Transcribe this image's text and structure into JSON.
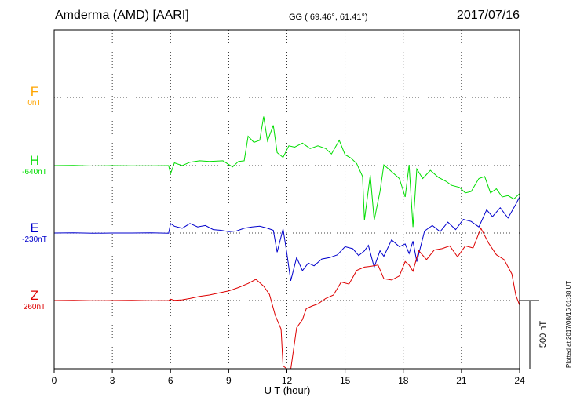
{
  "header": {
    "station": "Amderma (AMD)  [AARI]",
    "coords": "GG ( 69.46°,  61.41°)",
    "date": "2017/07/16"
  },
  "plotted_note": "Plotted at 2017/08/16 01:38 UT",
  "colors": {
    "F": "#ffa500",
    "H": "#00dd00",
    "E": "#0000cc",
    "Z": "#dd0000"
  },
  "chart_data": {
    "type": "line",
    "title": "Amderma (AMD)  [AARI]",
    "xlabel": "U T (hour)",
    "ylabel": "",
    "xlim": [
      0,
      24
    ],
    "x_ticks": [
      0,
      3,
      6,
      9,
      12,
      15,
      18,
      21,
      24
    ],
    "scale_bar": "500 nT",
    "grid": "dotted",
    "components": [
      {
        "name": "F",
        "baseline": "0nT",
        "color": "#ffa500"
      },
      {
        "name": "H",
        "baseline": "-640nT",
        "color": "#00dd00"
      },
      {
        "name": "E",
        "baseline": "-230nT",
        "color": "#0000cc"
      },
      {
        "name": "Z",
        "baseline": "260nT",
        "color": "#dd0000"
      }
    ],
    "series": [
      {
        "name": "H",
        "color": "#00dd00",
        "unit": "nT",
        "x": [
          0,
          1,
          2,
          3,
          4,
          5,
          5.9,
          6.0,
          6.2,
          6.6,
          7.0,
          7.5,
          8.0,
          8.7,
          9.2,
          9.5,
          9.8,
          10.0,
          10.3,
          10.6,
          10.8,
          11.0,
          11.3,
          11.5,
          11.8,
          12.1,
          12.4,
          12.8,
          13.2,
          13.6,
          14.0,
          14.3,
          14.7,
          15.0,
          15.3,
          15.6,
          15.9,
          16.0,
          16.3,
          16.5,
          16.8,
          17.0,
          17.4,
          17.8,
          18.1,
          18.3,
          18.5,
          18.7,
          19.0,
          19.4,
          19.8,
          20.2,
          20.5,
          20.9,
          21.2,
          21.5,
          21.9,
          22.2,
          22.5,
          22.8,
          23.1,
          23.4,
          23.7,
          24.0
        ],
        "values": [
          -640,
          -638,
          -643,
          -640,
          -641,
          -642,
          -640,
          -700,
          -620,
          -640,
          -615,
          -605,
          -610,
          -605,
          -650,
          -610,
          -605,
          -425,
          -470,
          -455,
          -280,
          -460,
          -345,
          -545,
          -580,
          -495,
          -505,
          -475,
          -515,
          -495,
          -515,
          -555,
          -455,
          -560,
          -585,
          -625,
          -720,
          -1040,
          -710,
          -1040,
          -830,
          -635,
          -685,
          -735,
          -870,
          -635,
          -1090,
          -665,
          -735,
          -675,
          -725,
          -755,
          -785,
          -800,
          -840,
          -830,
          -735,
          -720,
          -840,
          -810,
          -870,
          -860,
          -885,
          -845
        ]
      },
      {
        "name": "E",
        "color": "#0000cc",
        "unit": "nT",
        "x": [
          0,
          1,
          2,
          3,
          4,
          5,
          5.9,
          6.0,
          6.2,
          6.6,
          7.0,
          7.4,
          7.8,
          8.2,
          8.6,
          9.0,
          9.4,
          9.8,
          10.2,
          10.6,
          11.0,
          11.3,
          11.5,
          11.8,
          12.0,
          12.2,
          12.5,
          12.8,
          13.1,
          13.4,
          13.8,
          14.2,
          14.6,
          15.0,
          15.4,
          15.7,
          16.0,
          16.2,
          16.5,
          16.8,
          17.0,
          17.4,
          17.8,
          18.1,
          18.3,
          18.5,
          18.7,
          19.1,
          19.5,
          19.9,
          20.3,
          20.7,
          21.1,
          21.5,
          21.9,
          22.3,
          22.6,
          23.0,
          23.4,
          23.8,
          24.0
        ],
        "values": [
          -230,
          -228,
          -232,
          -230,
          -230,
          -229,
          -232,
          -160,
          -180,
          -195,
          -160,
          -185,
          -175,
          -205,
          -210,
          -220,
          -215,
          -195,
          -185,
          -180,
          -195,
          -210,
          -370,
          -200,
          -380,
          -580,
          -410,
          -505,
          -450,
          -470,
          -420,
          -410,
          -390,
          -330,
          -345,
          -395,
          -360,
          -320,
          -480,
          -360,
          -400,
          -280,
          -330,
          -310,
          -380,
          -290,
          -440,
          -215,
          -175,
          -220,
          -150,
          -205,
          -130,
          -145,
          -185,
          -60,
          -110,
          -45,
          -120,
          -20,
          35
        ]
      },
      {
        "name": "Z",
        "color": "#dd0000",
        "unit": "nT",
        "x": [
          0,
          1,
          2,
          3,
          4,
          5,
          5.9,
          6.0,
          6.2,
          6.6,
          7.0,
          7.5,
          8.0,
          8.5,
          9.0,
          9.5,
          10.0,
          10.4,
          10.8,
          11.1,
          11.4,
          11.7,
          11.8,
          12.0,
          12.2,
          12.5,
          12.8,
          13.0,
          13.3,
          13.6,
          14.0,
          14.4,
          14.8,
          15.2,
          15.6,
          16.0,
          16.3,
          16.7,
          17.0,
          17.4,
          17.8,
          18.1,
          18.3,
          18.5,
          18.8,
          19.2,
          19.6,
          20.0,
          20.4,
          20.8,
          21.2,
          21.6,
          22.0,
          22.4,
          22.8,
          23.2,
          23.6,
          23.8,
          24.0
        ],
        "values": [
          260,
          262,
          258,
          260,
          261,
          259,
          260,
          270,
          262,
          265,
          275,
          290,
          300,
          315,
          330,
          355,
          385,
          415,
          365,
          305,
          150,
          50,
          -220,
          -240,
          -245,
          60,
          120,
          200,
          220,
          235,
          275,
          300,
          395,
          380,
          480,
          505,
          510,
          520,
          420,
          410,
          440,
          545,
          520,
          475,
          625,
          560,
          630,
          640,
          660,
          580,
          660,
          645,
          790,
          680,
          595,
          560,
          455,
          300,
          225
        ]
      }
    ]
  }
}
